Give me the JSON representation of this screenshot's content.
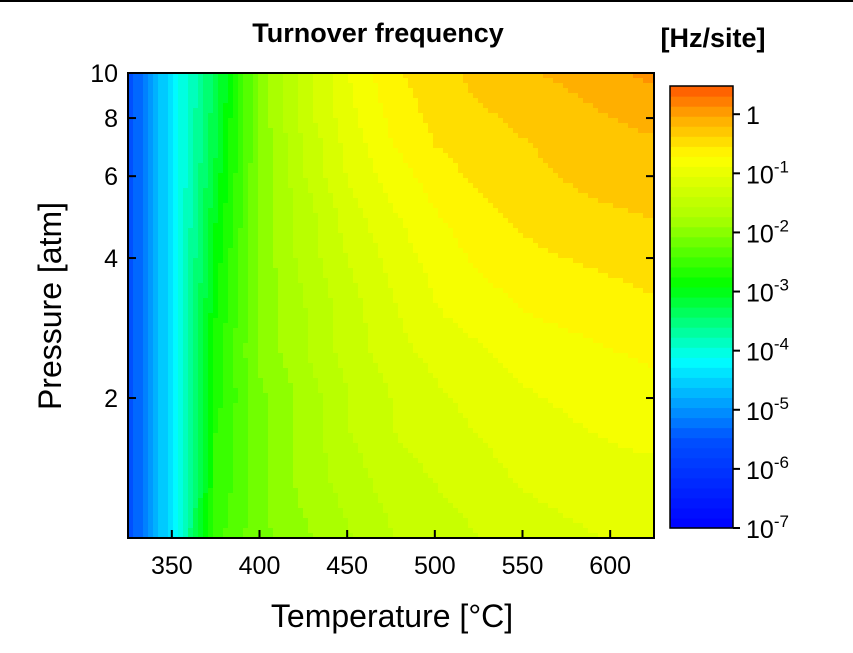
{
  "chart_data": {
    "type": "heatmap",
    "title": "Turnover frequency",
    "xlabel": "Temperature [°C]",
    "ylabel": "Pressure [atm]",
    "xlim": [
      325,
      625
    ],
    "ylim": [
      1,
      10
    ],
    "yscale": "log",
    "x_ticks": [
      350,
      400,
      450,
      500,
      550,
      600
    ],
    "x_tick_labels": [
      "350",
      "400",
      "450",
      "500",
      "550",
      "600"
    ],
    "y_ticks": [
      2,
      4,
      6,
      8,
      10
    ],
    "y_tick_labels": [
      "2",
      "4",
      "6",
      "8",
      "10"
    ],
    "grid": false,
    "colorbar": {
      "label": "[Hz/site]",
      "scale": "log",
      "range": [
        1e-07,
        3
      ],
      "ticks": [
        1e-07,
        1e-06,
        1e-05,
        0.0001,
        0.001,
        0.01,
        0.1,
        1
      ],
      "tick_labels": [
        {
          "base": "10",
          "exp": "-7"
        },
        {
          "base": "10",
          "exp": "-6"
        },
        {
          "base": "10",
          "exp": "-5"
        },
        {
          "base": "10",
          "exp": "-4"
        },
        {
          "base": "10",
          "exp": "-3"
        },
        {
          "base": "10",
          "exp": "-2"
        },
        {
          "base": "10",
          "exp": "-1"
        },
        {
          "base": "1",
          "exp": ""
        }
      ]
    },
    "x": [
      325,
      350,
      375,
      400,
      425,
      450,
      475,
      500,
      525,
      550,
      575,
      600,
      625
    ],
    "y": [
      1,
      1.3,
      1.7,
      2,
      2.5,
      3,
      4,
      5,
      6,
      7,
      8,
      9,
      10
    ],
    "log10_tof": [
      [
        -5.6,
        -4.3,
        -2.5,
        -2.1,
        -1.9,
        -1.7,
        -1.5,
        -1.4,
        -1.3,
        -1.2,
        -1.15,
        -1.1,
        -1.1
      ],
      [
        -5.6,
        -4.3,
        -2.6,
        -2.1,
        -1.8,
        -1.6,
        -1.4,
        -1.3,
        -1.2,
        -1.1,
        -1.05,
        -1.0,
        -1.0
      ],
      [
        -5.6,
        -4.3,
        -2.6,
        -2.1,
        -1.8,
        -1.5,
        -1.3,
        -1.2,
        -1.1,
        -1.0,
        -0.95,
        -0.9,
        -0.85
      ],
      [
        -5.6,
        -4.3,
        -2.7,
        -2.1,
        -1.8,
        -1.5,
        -1.3,
        -1.15,
        -1.05,
        -0.95,
        -0.9,
        -0.85,
        -0.8
      ],
      [
        -5.6,
        -4.3,
        -2.7,
        -2.0,
        -1.7,
        -1.4,
        -1.2,
        -1.05,
        -0.95,
        -0.85,
        -0.8,
        -0.75,
        -0.7
      ],
      [
        -5.6,
        -4.3,
        -2.8,
        -2.0,
        -1.7,
        -1.4,
        -1.15,
        -0.95,
        -0.85,
        -0.75,
        -0.7,
        -0.65,
        -0.6
      ],
      [
        -5.6,
        -4.3,
        -2.9,
        -2.0,
        -1.6,
        -1.3,
        -1.05,
        -0.85,
        -0.7,
        -0.6,
        -0.55,
        -0.5,
        -0.45
      ],
      [
        -5.6,
        -4.3,
        -3.0,
        -2.0,
        -1.6,
        -1.2,
        -0.95,
        -0.75,
        -0.6,
        -0.5,
        -0.42,
        -0.38,
        -0.35
      ],
      [
        -5.6,
        -4.3,
        -3.1,
        -2.0,
        -1.5,
        -1.1,
        -0.85,
        -0.65,
        -0.5,
        -0.42,
        -0.35,
        -0.3,
        -0.28
      ],
      [
        -5.6,
        -4.3,
        -3.2,
        -2.0,
        -1.5,
        -1.05,
        -0.75,
        -0.55,
        -0.45,
        -0.38,
        -0.3,
        -0.25,
        -0.2
      ],
      [
        -5.6,
        -4.3,
        -3.2,
        -2.0,
        -1.4,
        -1.0,
        -0.7,
        -0.5,
        -0.4,
        -0.32,
        -0.25,
        -0.18,
        -0.12
      ],
      [
        -5.6,
        -4.3,
        -3.3,
        -2.0,
        -1.4,
        -0.95,
        -0.65,
        -0.45,
        -0.35,
        -0.27,
        -0.2,
        -0.1,
        -0.02
      ],
      [
        -5.6,
        -4.3,
        -3.3,
        -2.0,
        -1.4,
        -0.95,
        -0.6,
        -0.42,
        -0.32,
        -0.22,
        -0.12,
        -0.02,
        0.05
      ]
    ]
  }
}
